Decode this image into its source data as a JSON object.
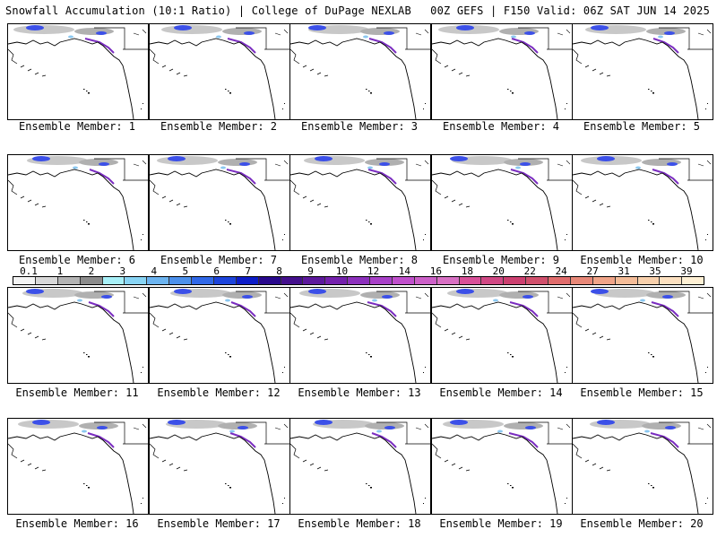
{
  "header": {
    "title": "Snowfall Accumulation (10:1 Ratio) | College of DuPage NEXLAB",
    "valid": "00Z GEFS | F150 Valid: 06Z SAT JUN 14 2025"
  },
  "panels": [
    {
      "caption": "Ensemble Member: 1"
    },
    {
      "caption": "Ensemble Member: 2"
    },
    {
      "caption": "Ensemble Member: 3"
    },
    {
      "caption": "Ensemble Member: 4"
    },
    {
      "caption": "Ensemble Member: 5"
    },
    {
      "caption": "Ensemble Member: 6"
    },
    {
      "caption": "Ensemble Member: 7"
    },
    {
      "caption": "Ensemble Member: 8"
    },
    {
      "caption": "Ensemble Member: 9"
    },
    {
      "caption": "Ensemble Member: 10"
    },
    {
      "caption": "Ensemble Member: 11"
    },
    {
      "caption": "Ensemble Member: 12"
    },
    {
      "caption": "Ensemble Member: 13"
    },
    {
      "caption": "Ensemble Member: 14"
    },
    {
      "caption": "Ensemble Member: 15"
    },
    {
      "caption": "Ensemble Member: 16"
    },
    {
      "caption": "Ensemble Member: 17"
    },
    {
      "caption": "Ensemble Member: 18"
    },
    {
      "caption": "Ensemble Member: 19"
    },
    {
      "caption": "Ensemble Member: 20"
    }
  ],
  "colorbar": {
    "labels": [
      "0.1",
      "1",
      "2",
      "3",
      "4",
      "5",
      "6",
      "7",
      "8",
      "9",
      "10",
      "12",
      "14",
      "16",
      "18",
      "20",
      "22",
      "24",
      "27",
      "31",
      "35",
      "39"
    ],
    "colors": [
      "#f4f4f4",
      "#d8d8d8",
      "#b4b4b4",
      "#8c8c8c",
      "#a8f0f8",
      "#88d4f4",
      "#6cb4f0",
      "#4c90ec",
      "#3068e8",
      "#1c44dc",
      "#0c1cc8",
      "#28088c",
      "#44108c",
      "#5c189c",
      "#7420ac",
      "#8c30bc",
      "#a840c8",
      "#c050cc",
      "#cc60c8",
      "#d870c4",
      "#d85098",
      "#d04884",
      "#cc4070",
      "#d0506c",
      "#e06c6c",
      "#e88878",
      "#f0a488",
      "#f4bc98",
      "#f8d0ac",
      "#fce0c0",
      "#fff0d4"
    ]
  }
}
